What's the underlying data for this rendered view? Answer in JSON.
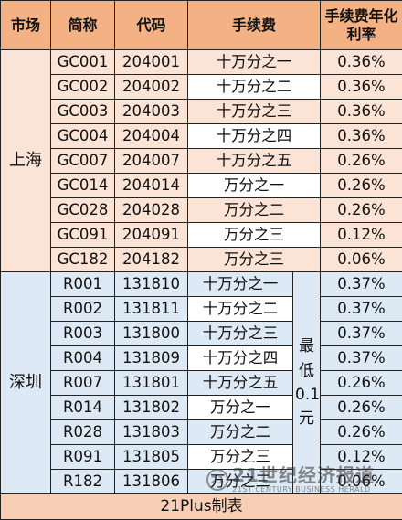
{
  "headers": {
    "market": "市场",
    "abbr": "简称",
    "code": "代码",
    "fee": "手续费",
    "rate": "手续费年化利率"
  },
  "shanghai": {
    "market": "上海",
    "rows": [
      {
        "abbr": "GC001",
        "code": "204001",
        "fee": "十万分之一",
        "rate": "0.36%"
      },
      {
        "abbr": "GC002",
        "code": "204002",
        "fee": "十万分之二",
        "rate": "0.36%"
      },
      {
        "abbr": "GC003",
        "code": "204003",
        "fee": "十万分之三",
        "rate": "0.36%"
      },
      {
        "abbr": "GC004",
        "code": "204004",
        "fee": "十万分之四",
        "rate": "0.36%"
      },
      {
        "abbr": "GC007",
        "code": "204007",
        "fee": "十万分之五",
        "rate": "0.26%"
      },
      {
        "abbr": "GC014",
        "code": "204014",
        "fee": "万分之一",
        "rate": "0.26%"
      },
      {
        "abbr": "GC028",
        "code": "204028",
        "fee": "万分之二",
        "rate": "0.26%"
      },
      {
        "abbr": "GC091",
        "code": "204091",
        "fee": "万分之三",
        "rate": "0.12%"
      },
      {
        "abbr": "GC182",
        "code": "204182",
        "fee": "万分之三",
        "rate": "0.06%"
      }
    ]
  },
  "shenzhen": {
    "market": "深圳",
    "min_fee": [
      "最",
      "低",
      "0.1",
      "元"
    ],
    "rows": [
      {
        "abbr": "R001",
        "code": "131810",
        "fee": "十万分之一",
        "rate": "0.37%"
      },
      {
        "abbr": "R002",
        "code": "131811",
        "fee": "十万分之二",
        "rate": "0.37%"
      },
      {
        "abbr": "R003",
        "code": "131800",
        "fee": "十万分之三",
        "rate": "0.37%"
      },
      {
        "abbr": "R004",
        "code": "131809",
        "fee": "十万分之四",
        "rate": "0.37%"
      },
      {
        "abbr": "R007",
        "code": "131801",
        "fee": "十万分之五",
        "rate": "0.26%"
      },
      {
        "abbr": "R014",
        "code": "131802",
        "fee": "万分之一",
        "rate": "0.26%"
      },
      {
        "abbr": "R028",
        "code": "131803",
        "fee": "万分之二",
        "rate": "0.26%"
      },
      {
        "abbr": "R091",
        "code": "131805",
        "fee": "万分之三",
        "rate": "0.12%"
      },
      {
        "abbr": "R182",
        "code": "131806",
        "fee": "万分之三",
        "rate": "0.06%"
      }
    ]
  },
  "footer": "21Plus制表",
  "watermark": {
    "logo": "21",
    "cn": "21世纪经济报道",
    "en": "21ST CENTURY BUSINESS HERALD"
  },
  "colors": {
    "header_bg": "#f4b183",
    "shanghai_bg": "#fbe3d5",
    "shenzhen_bg": "#dde9f5",
    "footer_bg": "#f8cfb4"
  }
}
